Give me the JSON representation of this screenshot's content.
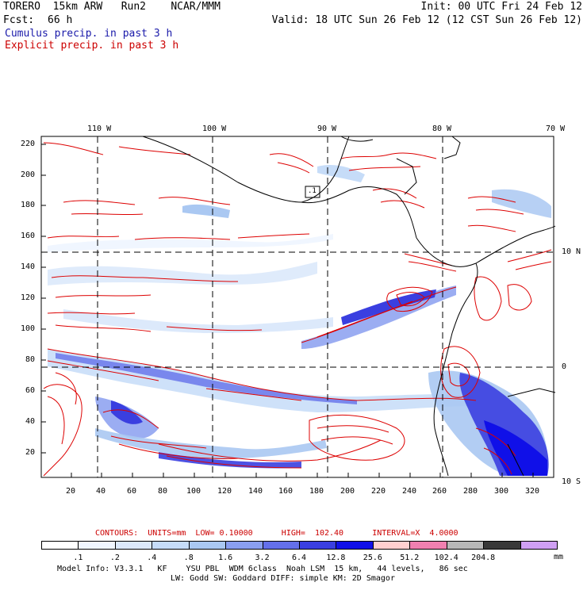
{
  "header": {
    "model": "TORERO  15km ARW   Run2    NCAR/MMM",
    "init": "Init: 00 UTC Fri 24 Feb 12",
    "fcst_label": "Fcst:",
    "fcst_value": "66 h",
    "valid": "Valid: 18 UTC Sun 26 Feb 12 (12 CST Sun 26 Feb 12)",
    "cumulus": "Cumulus precip. in past 3 h",
    "explicit": "Explicit precip. in past 3 h"
  },
  "colors": {
    "cumulus": "#1a1aaa",
    "explicit": "#cc0000",
    "contour": "#dd0000",
    "coast": "#000000"
  },
  "map": {
    "top_lon_labels": [
      "110 W",
      "100 W",
      "90 W",
      "80 W",
      "70 W"
    ],
    "right_lat_labels": [
      "10 N",
      "0",
      "10 S"
    ],
    "y_ticks": [
      "220",
      "200",
      "180",
      "160",
      "140",
      "120",
      "100",
      "80",
      "60",
      "40",
      "20"
    ],
    "x_ticks": [
      "20",
      "40",
      "60",
      "80",
      "100",
      "120",
      "140",
      "160",
      "180",
      "200",
      "220",
      "240",
      "260",
      "280",
      "300",
      "320"
    ],
    "station_label": ".1"
  },
  "contours_line": "CONTOURS:  UNITS=mm  LOW= 0.10000      HIGH=  102.40      INTERVAL=X  4.0000",
  "legend": {
    "units": "mm",
    "colors": [
      "#ffffff",
      "#f0f6ff",
      "#dce9fb",
      "#c6dcf8",
      "#aac8f2",
      "#8a9ff0",
      "#6470ea",
      "#3a3fe0",
      "#1010e8",
      "#ffd0d0",
      "#f080b0",
      "#b8b8b8",
      "#383838",
      "#d0a0f4"
    ],
    "values": [
      ".1",
      ".2",
      ".4",
      ".8",
      "1.6",
      "3.2",
      "6.4",
      "12.8",
      "25.6",
      "51.2",
      "102.4",
      "204.8"
    ]
  },
  "model_info": {
    "line1": "Model Info: V3.3.1   KF    YSU PBL  WDM 6class  Noah LSM  15 km,   44 levels,   86 sec",
    "line2": "LW: Godd SW: Goddard DIFF: simple KM: 2D Smagor"
  }
}
